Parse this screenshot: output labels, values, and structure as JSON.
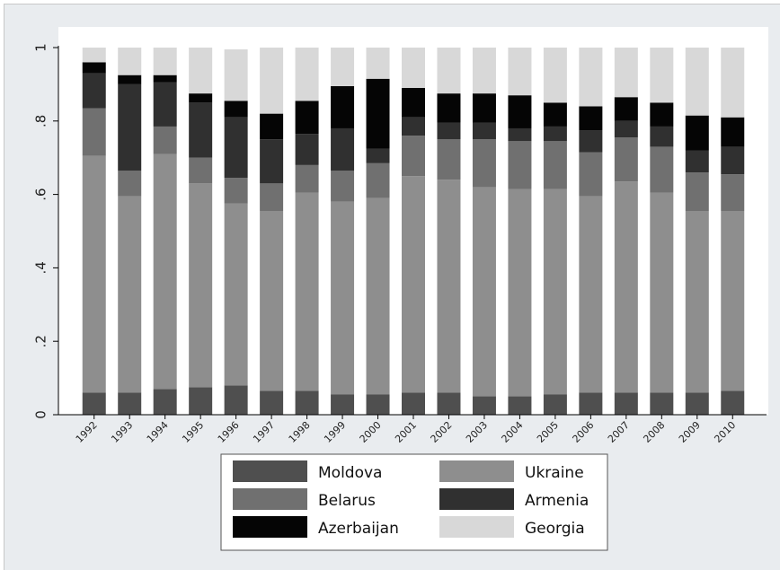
{
  "chart_data": {
    "type": "bar",
    "stacked": true,
    "categories": [
      "1992",
      "1993",
      "1994",
      "1995",
      "1996",
      "1997",
      "1998",
      "1999",
      "2000",
      "2001",
      "2002",
      "2003",
      "2004",
      "2005",
      "2006",
      "2007",
      "2008",
      "2009",
      "2010"
    ],
    "series": [
      {
        "name": "Moldova",
        "color": "#4f4f4f",
        "values": [
          0.06,
          0.06,
          0.07,
          0.075,
          0.08,
          0.065,
          0.065,
          0.055,
          0.055,
          0.06,
          0.06,
          0.05,
          0.05,
          0.055,
          0.06,
          0.06,
          0.06,
          0.06,
          0.065
        ]
      },
      {
        "name": "Ukraine",
        "color": "#8e8e8e",
        "values": [
          0.645,
          0.535,
          0.64,
          0.555,
          0.495,
          0.49,
          0.54,
          0.525,
          0.535,
          0.59,
          0.58,
          0.57,
          0.565,
          0.56,
          0.535,
          0.575,
          0.545,
          0.495,
          0.49
        ]
      },
      {
        "name": "Belarus",
        "color": "#707070",
        "values": [
          0.13,
          0.07,
          0.075,
          0.07,
          0.07,
          0.075,
          0.075,
          0.085,
          0.095,
          0.11,
          0.11,
          0.13,
          0.13,
          0.13,
          0.12,
          0.12,
          0.125,
          0.105,
          0.1
        ]
      },
      {
        "name": "Armenia",
        "color": "#303030",
        "values": [
          0.095,
          0.235,
          0.12,
          0.15,
          0.165,
          0.12,
          0.085,
          0.115,
          0.04,
          0.05,
          0.045,
          0.045,
          0.035,
          0.04,
          0.06,
          0.045,
          0.055,
          0.06,
          0.075
        ]
      },
      {
        "name": "Azerbaijan",
        "color": "#050505",
        "values": [
          0.03,
          0.025,
          0.02,
          0.025,
          0.045,
          0.07,
          0.09,
          0.115,
          0.19,
          0.08,
          0.08,
          0.08,
          0.09,
          0.065,
          0.065,
          0.065,
          0.065,
          0.095,
          0.08
        ]
      },
      {
        "name": "Georgia",
        "color": "#d8d8d8",
        "values": [
          0.04,
          0.075,
          0.075,
          0.125,
          0.14,
          0.18,
          0.145,
          0.105,
          0.085,
          0.11,
          0.125,
          0.125,
          0.13,
          0.15,
          0.16,
          0.135,
          0.15,
          0.185,
          0.19
        ]
      }
    ],
    "yticks": [
      0,
      0.2,
      0.4,
      0.6,
      0.8,
      1
    ],
    "ytick_labels": [
      "0",
      ".2",
      ".4",
      ".6",
      ".8",
      "1"
    ],
    "ylim": [
      0,
      1.05
    ],
    "grid": false,
    "legend": "bottom"
  }
}
